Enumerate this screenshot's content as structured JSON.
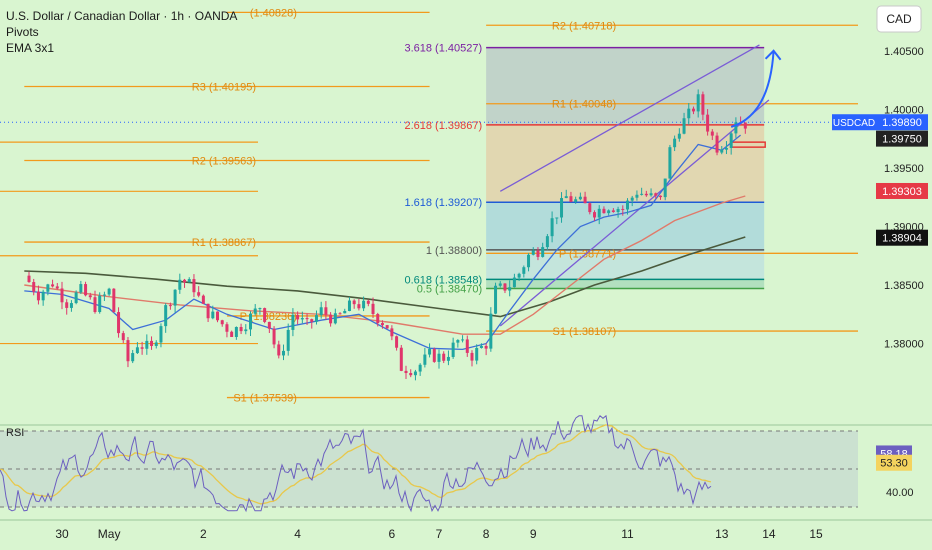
{
  "legend": {
    "title": "U.S. Dollar / Canadian Dollar · 1h · OANDA",
    "indicator1": "Pivots",
    "indicator2": "EMA 3x1"
  },
  "currency_button": "CAD",
  "chart_data": [
    {
      "type": "line",
      "symbol": "USDCAD",
      "timeframe": "1h",
      "ylim": [
        1.3745,
        1.4078
      ],
      "y_ticks": [
        "1.40500",
        "1.40000",
        "1.39500",
        "1.39000",
        "1.38500",
        "1.38000"
      ],
      "x_ticks": [
        "30",
        "May",
        "2",
        "4",
        "6",
        "7",
        "8",
        "9",
        "11",
        "13",
        "14",
        "15"
      ],
      "x_tick_days": [
        0,
        1,
        3,
        5,
        7,
        8,
        9,
        10,
        12,
        14,
        15,
        16
      ],
      "price_path": [
        [
          -0.8,
          1.3858
        ],
        [
          -0.5,
          1.3842
        ],
        [
          -0.2,
          1.3852
        ],
        [
          0.1,
          1.3835
        ],
        [
          0.4,
          1.3845
        ],
        [
          0.7,
          1.3832
        ],
        [
          1.0,
          1.3845
        ],
        [
          1.2,
          1.381
        ],
        [
          1.4,
          1.3785
        ],
        [
          1.6,
          1.38
        ],
        [
          1.9,
          1.3795
        ],
        [
          2.2,
          1.383
        ],
        [
          2.5,
          1.3855
        ],
        [
          2.8,
          1.3848
        ],
        [
          3.0,
          1.383
        ],
        [
          3.3,
          1.382
        ],
        [
          3.6,
          1.381
        ],
        [
          3.9,
          1.3818
        ],
        [
          4.2,
          1.3832
        ],
        [
          4.4,
          1.3815
        ],
        [
          4.6,
          1.3785
        ],
        [
          4.9,
          1.3825
        ],
        [
          5.2,
          1.3815
        ],
        [
          5.5,
          1.3828
        ],
        [
          5.8,
          1.382
        ],
        [
          6.2,
          1.3835
        ],
        [
          6.5,
          1.383
        ],
        [
          6.9,
          1.3815
        ],
        [
          7.2,
          1.378
        ],
        [
          7.5,
          1.3778
        ],
        [
          7.8,
          1.379
        ],
        [
          8.1,
          1.3788
        ],
        [
          8.4,
          1.3802
        ],
        [
          8.7,
          1.379
        ],
        [
          9.0,
          1.38
        ],
        [
          9.2,
          1.3845
        ],
        [
          9.5,
          1.385
        ],
        [
          9.7,
          1.386
        ],
        [
          9.9,
          1.3875
        ],
        [
          10.1,
          1.388
        ],
        [
          10.4,
          1.3905
        ],
        [
          10.7,
          1.3925
        ],
        [
          11.0,
          1.392
        ],
        [
          11.3,
          1.3913
        ],
        [
          11.6,
          1.3918
        ],
        [
          11.9,
          1.3915
        ],
        [
          12.2,
          1.393
        ],
        [
          12.5,
          1.3925
        ],
        [
          12.7,
          1.3922
        ],
        [
          12.9,
          1.3965
        ],
        [
          13.1,
          1.3985
        ],
        [
          13.3,
          1.3995
        ],
        [
          13.5,
          1.4008
        ],
        [
          13.7,
          1.3985
        ],
        [
          13.9,
          1.3968
        ],
        [
          14.1,
          1.3973
        ],
        [
          14.3,
          1.3992
        ],
        [
          14.5,
          1.3988
        ]
      ],
      "ema_fast": [
        [
          -0.8,
          1.3845
        ],
        [
          0,
          1.3842
        ],
        [
          1,
          1.383
        ],
        [
          1.5,
          1.3812
        ],
        [
          2.2,
          1.382
        ],
        [
          2.8,
          1.3838
        ],
        [
          3.5,
          1.3825
        ],
        [
          4.5,
          1.3812
        ],
        [
          5.5,
          1.382
        ],
        [
          6.3,
          1.3825
        ],
        [
          7.0,
          1.381
        ],
        [
          7.8,
          1.3796
        ],
        [
          8.5,
          1.3795
        ],
        [
          9.0,
          1.38
        ],
        [
          9.5,
          1.3828
        ],
        [
          10.0,
          1.3855
        ],
        [
          10.5,
          1.388
        ],
        [
          11.0,
          1.39
        ],
        [
          11.5,
          1.3908
        ],
        [
          12.0,
          1.3912
        ],
        [
          12.5,
          1.3918
        ],
        [
          13.0,
          1.3945
        ],
        [
          13.5,
          1.397
        ],
        [
          14.0,
          1.3965
        ],
        [
          14.4,
          1.3978
        ]
      ],
      "ema_mid": [
        [
          -0.8,
          1.385
        ],
        [
          1,
          1.384
        ],
        [
          2.5,
          1.3833
        ],
        [
          4,
          1.3828
        ],
        [
          5.5,
          1.3825
        ],
        [
          7,
          1.3818
        ],
        [
          8.5,
          1.3808
        ],
        [
          9.3,
          1.3808
        ],
        [
          10,
          1.3825
        ],
        [
          10.8,
          1.385
        ],
        [
          11.5,
          1.3872
        ],
        [
          12.3,
          1.3888
        ],
        [
          13,
          1.3905
        ],
        [
          14,
          1.392
        ],
        [
          14.5,
          1.3926
        ]
      ],
      "ema_slow": [
        [
          -0.8,
          1.3862
        ],
        [
          0.5,
          1.386
        ],
        [
          2,
          1.3855
        ],
        [
          3.5,
          1.3849
        ],
        [
          5,
          1.3845
        ],
        [
          6.5,
          1.3838
        ],
        [
          8,
          1.383
        ],
        [
          9.3,
          1.3823
        ],
        [
          10.3,
          1.3835
        ],
        [
          11.3,
          1.385
        ],
        [
          12.3,
          1.3862
        ],
        [
          13.3,
          1.3876
        ],
        [
          14.5,
          1.3891
        ]
      ],
      "rsi": {
        "label": "RSI",
        "ticks": [
          "58.18",
          "53.30",
          "40.00"
        ],
        "levels": [
          70,
          50,
          30
        ],
        "values": [
          58.18,
          53.3
        ]
      },
      "price_labels": [
        {
          "text": "USDCAD",
          "value": "1.39890",
          "color": "#2962ff"
        },
        {
          "text": "",
          "value": "1.39750",
          "color": "#222222"
        },
        {
          "text": "",
          "value": "1.39303",
          "color": "#e63946"
        },
        {
          "text": "",
          "value": "1.38904",
          "color": "#111111"
        }
      ],
      "pivots_left": [
        {
          "text": "R3 (1.40195)",
          "value": 1.40195,
          "from": -0.8,
          "to": 7.8
        },
        {
          "text": "R2 (1.39563)",
          "value": 1.39563,
          "from": -0.8,
          "to": 7.8
        },
        {
          "text": "R1 (1.38867)",
          "value": 1.38867,
          "from": -0.8,
          "to": 7.8
        },
        {
          "text": "P (1.38236)",
          "value": 1.38236,
          "from": 3.5,
          "to": 7.8
        },
        {
          "text": "S1 (1.37539)",
          "value": 1.37539,
          "from": 3.5,
          "to": 7.8
        },
        {
          "text": "(1.40828)",
          "value": 1.40828,
          "from": 3.5,
          "to": 7.8
        }
      ],
      "pivots_right": [
        {
          "text": "R2 (1.40718)",
          "value": 1.40718,
          "from": 9.0,
          "to": 16.9
        },
        {
          "text": "R1 (1.40048)",
          "value": 1.40048,
          "from": 9.0,
          "to": 16.9
        },
        {
          "text": "P (1.38771)",
          "value": 1.38771,
          "from": 9.0,
          "to": 16.9
        },
        {
          "text": "S1 (1.38107)",
          "value": 1.38107,
          "from": 9.0,
          "to": 16.9
        }
      ],
      "fibonacci": {
        "from_day": 9.0,
        "to_day": 14.9,
        "levels": [
          {
            "ratio": "3.618",
            "value": 1.40527,
            "text": "3.618 (1.40527)",
            "color": "#7b1fa2"
          },
          {
            "ratio": "2.618",
            "value": 1.39867,
            "text": "2.618 (1.39867)",
            "color": "#e53935"
          },
          {
            "ratio": "1.618",
            "value": 1.39207,
            "text": "1.618 (1.39207)",
            "color": "#1e5bd6"
          },
          {
            "ratio": "1",
            "value": 1.388,
            "text": "1 (1.38800)",
            "color": "#555555"
          },
          {
            "ratio": "0.618",
            "value": 1.38548,
            "text": "0.618 (1.38548)",
            "color": "#00897b"
          },
          {
            "ratio": "0.5",
            "value": 1.3847,
            "text": "0.5 (1.38470)",
            "color": "#43a047"
          }
        ]
      }
    }
  ]
}
